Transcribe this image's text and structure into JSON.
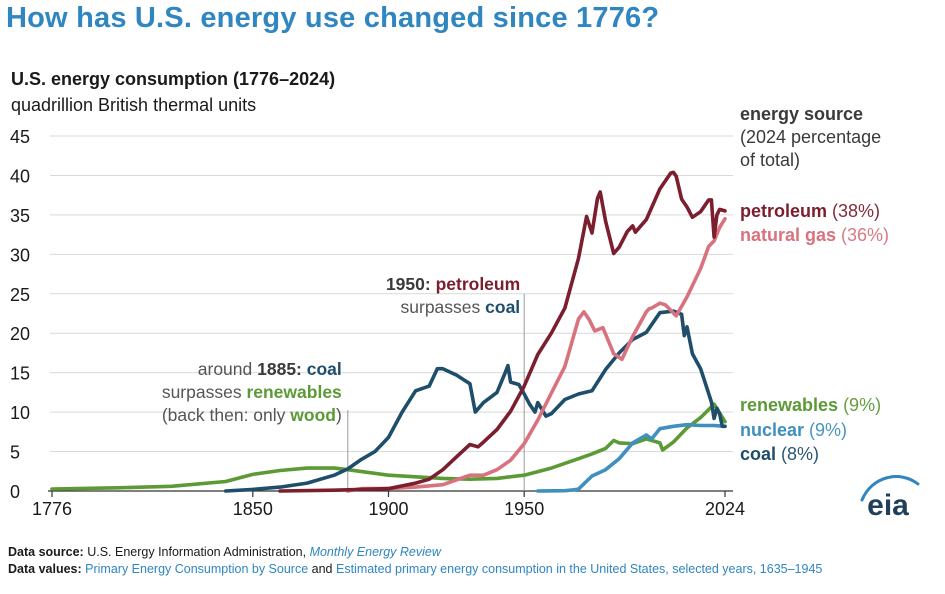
{
  "headline": "How has U.S. energy use changed since 1776?",
  "chart_data": {
    "type": "line",
    "title": "U.S. energy consumption (1776–2024)",
    "ylabel": "quadrillion British thermal units",
    "xlim": [
      1776,
      2024
    ],
    "ylim": [
      0,
      45
    ],
    "yticks": [
      "0",
      "5",
      "10",
      "15",
      "20",
      "25",
      "30",
      "35",
      "40",
      "45"
    ],
    "xticks": [
      "1776",
      "1850",
      "1900",
      "1950",
      "2024"
    ],
    "grid": true,
    "legend_title": [
      "energy source",
      "(2024 percentage",
      "of total)"
    ],
    "series": [
      {
        "name": "petroleum",
        "pct": "(38%)",
        "color": "#7b1e2e",
        "points": [
          [
            1860,
            0
          ],
          [
            1880,
            0.1
          ],
          [
            1890,
            0.2
          ],
          [
            1900,
            0.3
          ],
          [
            1910,
            1.0
          ],
          [
            1915,
            1.5
          ],
          [
            1920,
            2.7
          ],
          [
            1925,
            4.3
          ],
          [
            1930,
            5.9
          ],
          [
            1933,
            5.6
          ],
          [
            1935,
            6.2
          ],
          [
            1940,
            7.8
          ],
          [
            1945,
            10.1
          ],
          [
            1950,
            13.3
          ],
          [
            1955,
            17.3
          ],
          [
            1960,
            20.0
          ],
          [
            1965,
            23.2
          ],
          [
            1970,
            29.5
          ],
          [
            1973,
            34.8
          ],
          [
            1975,
            32.7
          ],
          [
            1977,
            37.1
          ],
          [
            1978,
            37.9
          ],
          [
            1980,
            34.2
          ],
          [
            1983,
            30.1
          ],
          [
            1985,
            30.9
          ],
          [
            1988,
            32.9
          ],
          [
            1990,
            33.6
          ],
          [
            1991,
            32.8
          ],
          [
            1995,
            34.4
          ],
          [
            2000,
            38.3
          ],
          [
            2004,
            40.3
          ],
          [
            2005,
            40.4
          ],
          [
            2006,
            39.9
          ],
          [
            2008,
            37.0
          ],
          [
            2010,
            36.0
          ],
          [
            2012,
            34.7
          ],
          [
            2015,
            35.4
          ],
          [
            2018,
            36.9
          ],
          [
            2019,
            36.9
          ],
          [
            2020,
            32.2
          ],
          [
            2021,
            35.0
          ],
          [
            2022,
            35.7
          ],
          [
            2024,
            35.5
          ]
        ]
      },
      {
        "name": "natural gas",
        "pct": "(36%)",
        "color": "#d8727e",
        "points": [
          [
            1885,
            0
          ],
          [
            1890,
            0.3
          ],
          [
            1900,
            0.3
          ],
          [
            1910,
            0.5
          ],
          [
            1920,
            0.8
          ],
          [
            1930,
            2.0
          ],
          [
            1935,
            2.0
          ],
          [
            1940,
            2.7
          ],
          [
            1945,
            3.9
          ],
          [
            1950,
            6.0
          ],
          [
            1955,
            9.0
          ],
          [
            1960,
            12.4
          ],
          [
            1965,
            15.8
          ],
          [
            1970,
            21.8
          ],
          [
            1972,
            22.7
          ],
          [
            1974,
            21.7
          ],
          [
            1976,
            20.3
          ],
          [
            1979,
            20.7
          ],
          [
            1983,
            17.4
          ],
          [
            1986,
            16.7
          ],
          [
            1990,
            19.6
          ],
          [
            1995,
            22.7
          ],
          [
            1996,
            23.1
          ],
          [
            1997,
            23.2
          ],
          [
            2000,
            23.8
          ],
          [
            2002,
            23.6
          ],
          [
            2006,
            22.2
          ],
          [
            2010,
            24.6
          ],
          [
            2015,
            28.2
          ],
          [
            2018,
            31.0
          ],
          [
            2020,
            31.7
          ],
          [
            2022,
            33.4
          ],
          [
            2024,
            34.5
          ]
        ]
      },
      {
        "name": "renewables",
        "pct": "(9%)",
        "color": "#5c9a36",
        "points": [
          [
            1776,
            0.25
          ],
          [
            1800,
            0.4
          ],
          [
            1820,
            0.6
          ],
          [
            1840,
            1.2
          ],
          [
            1850,
            2.1
          ],
          [
            1860,
            2.6
          ],
          [
            1870,
            2.9
          ],
          [
            1880,
            2.9
          ],
          [
            1885,
            2.7
          ],
          [
            1900,
            2.0
          ],
          [
            1910,
            1.8
          ],
          [
            1920,
            1.6
          ],
          [
            1930,
            1.5
          ],
          [
            1940,
            1.6
          ],
          [
            1950,
            2.0
          ],
          [
            1960,
            2.9
          ],
          [
            1970,
            4.1
          ],
          [
            1975,
            4.7
          ],
          [
            1980,
            5.4
          ],
          [
            1983,
            6.4
          ],
          [
            1985,
            6.1
          ],
          [
            1990,
            6.0
          ],
          [
            1995,
            6.6
          ],
          [
            2000,
            6.1
          ],
          [
            2001,
            5.2
          ],
          [
            2005,
            6.2
          ],
          [
            2010,
            8.0
          ],
          [
            2015,
            9.3
          ],
          [
            2020,
            11.0
          ],
          [
            2024,
            8.8
          ]
        ]
      },
      {
        "name": "nuclear",
        "pct": "(9%)",
        "color": "#3f8fbf",
        "points": [
          [
            1955,
            0
          ],
          [
            1957,
            0.01
          ],
          [
            1965,
            0.04
          ],
          [
            1968,
            0.14
          ],
          [
            1970,
            0.24
          ],
          [
            1975,
            1.9
          ],
          [
            1980,
            2.7
          ],
          [
            1985,
            4.1
          ],
          [
            1990,
            6.1
          ],
          [
            1995,
            7.1
          ],
          [
            1997,
            6.6
          ],
          [
            2000,
            7.9
          ],
          [
            2005,
            8.2
          ],
          [
            2010,
            8.4
          ],
          [
            2015,
            8.3
          ],
          [
            2020,
            8.3
          ],
          [
            2024,
            8.2
          ]
        ]
      },
      {
        "name": "coal",
        "pct": "(8%)",
        "color": "#1f4e6b",
        "points": [
          [
            1840,
            0
          ],
          [
            1850,
            0.2
          ],
          [
            1860,
            0.5
          ],
          [
            1870,
            1.0
          ],
          [
            1880,
            2.0
          ],
          [
            1885,
            2.8
          ],
          [
            1890,
            4.0
          ],
          [
            1895,
            5.0
          ],
          [
            1900,
            6.8
          ],
          [
            1905,
            10.0
          ],
          [
            1910,
            12.7
          ],
          [
            1915,
            13.3
          ],
          [
            1918,
            15.5
          ],
          [
            1920,
            15.5
          ],
          [
            1925,
            14.7
          ],
          [
            1930,
            13.6
          ],
          [
            1932,
            10.0
          ],
          [
            1935,
            11.2
          ],
          [
            1940,
            12.5
          ],
          [
            1943,
            15.0
          ],
          [
            1944,
            15.9
          ],
          [
            1945,
            13.8
          ],
          [
            1948,
            13.5
          ],
          [
            1950,
            12.3
          ],
          [
            1952,
            11.0
          ],
          [
            1954,
            10.0
          ],
          [
            1955,
            11.2
          ],
          [
            1958,
            9.5
          ],
          [
            1960,
            9.8
          ],
          [
            1965,
            11.6
          ],
          [
            1970,
            12.3
          ],
          [
            1975,
            12.7
          ],
          [
            1980,
            15.4
          ],
          [
            1985,
            17.5
          ],
          [
            1990,
            19.2
          ],
          [
            1995,
            20.1
          ],
          [
            2000,
            22.6
          ],
          [
            2005,
            22.8
          ],
          [
            2008,
            22.4
          ],
          [
            2009,
            19.7
          ],
          [
            2010,
            20.8
          ],
          [
            2012,
            17.4
          ],
          [
            2015,
            15.5
          ],
          [
            2019,
            11.3
          ],
          [
            2020,
            9.2
          ],
          [
            2021,
            10.5
          ],
          [
            2022,
            9.8
          ],
          [
            2023,
            8.2
          ],
          [
            2024,
            8.2
          ]
        ]
      }
    ],
    "annotations": [
      {
        "lines": [
          [
            {
              "t": "around ",
              "k": "gray"
            },
            {
              "t": "1885: ",
              "k": "bold-dark"
            },
            {
              "t": "coal",
              "k": "bold-coal"
            }
          ],
          [
            {
              "t": "surpasses ",
              "k": "gray"
            },
            {
              "t": "renewables",
              "k": "bold-green"
            }
          ],
          [
            {
              "t": "(back then: only ",
              "k": "gray"
            },
            {
              "t": "wood",
              "k": "bold-green"
            },
            {
              "t": ")",
              "k": "gray"
            }
          ]
        ],
        "year": 1885
      },
      {
        "lines": [
          [
            {
              "t": "1950: ",
              "k": "bold-dark"
            },
            {
              "t": "petroleum",
              "k": "bold-petro"
            }
          ],
          [
            {
              "t": "surpasses ",
              "k": "gray"
            },
            {
              "t": "coal",
              "k": "bold-coal"
            }
          ]
        ],
        "year": 1950
      }
    ]
  },
  "footer": {
    "source_label": "Data source:",
    "source_text": "U.S. Energy Information Administration,",
    "source_link": "Monthly Energy Review",
    "values_label": "Data values:",
    "values_link1": "Primary Energy Consumption by Source",
    "values_and": "and",
    "values_link2": "Estimated primary energy consumption in the United States, selected years, 1635–1945"
  },
  "logo": "eia",
  "colors": {
    "accent": "#2f86c0",
    "grid": "#d9d9d9"
  }
}
